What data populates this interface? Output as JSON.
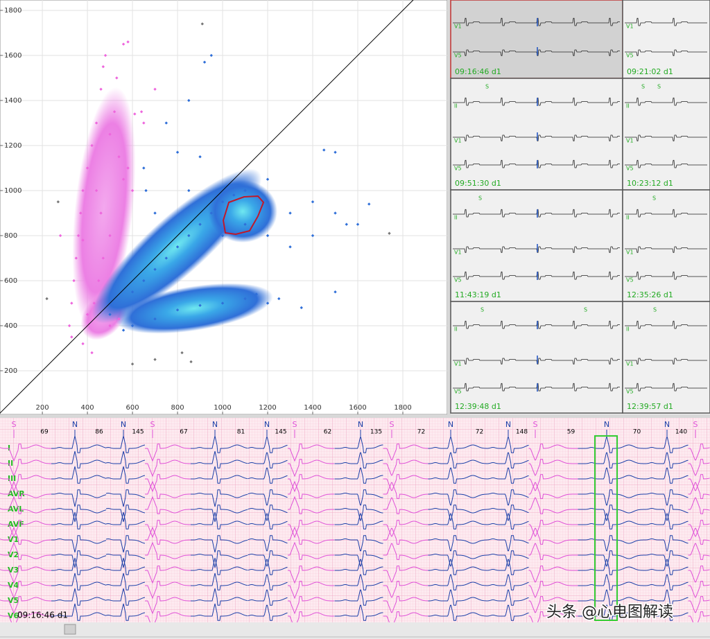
{
  "chart_data": {
    "type": "scatter",
    "xlim": [
      12,
      1997
    ],
    "ylim": [
      6,
      1846
    ],
    "xticks": [
      200,
      400,
      600,
      800,
      1000,
      1200,
      1400,
      1600,
      1800
    ],
    "yticks": [
      200,
      400,
      600,
      800,
      1000,
      1200,
      1400,
      1600,
      1800
    ],
    "grid": true,
    "series": [
      {
        "color": "#ee66dd",
        "x": [
          480,
          470,
          460,
          440,
          420,
          400,
          380,
          370,
          360,
          350,
          340,
          330,
          320,
          330,
          380,
          420,
          500,
          540,
          560,
          580,
          530,
          520,
          500,
          540,
          560,
          580,
          600,
          440,
          460,
          500,
          470,
          450,
          430,
          400,
          380,
          280,
          640,
          650,
          610,
          700
        ],
        "y": [
          1600,
          1550,
          1450,
          1300,
          1200,
          1100,
          1000,
          900,
          800,
          700,
          600,
          500,
          400,
          350,
          320,
          280,
          400,
          430,
          1650,
          1660,
          1500,
          1350,
          1250,
          1150,
          1050,
          1100,
          1000,
          1000,
          900,
          800,
          700,
          600,
          500,
          450,
          780,
          800,
          1350,
          1300,
          1340,
          1450
        ]
      },
      {
        "color": "#2f6fd8",
        "x": [
          560,
          600,
          700,
          800,
          900,
          1000,
          1100,
          1150,
          1200,
          1250,
          650,
          700,
          750,
          800,
          850,
          900,
          950,
          1000,
          1050,
          1100,
          1200,
          1300,
          1400,
          1500,
          1600,
          1650,
          1550,
          1400,
          1300,
          1200,
          1100,
          1000,
          1500,
          1350,
          750,
          850,
          920,
          950,
          1450,
          1500,
          1200,
          900,
          800,
          850,
          700,
          660,
          650,
          600,
          500
        ],
        "y": [
          380,
          400,
          430,
          470,
          490,
          500,
          520,
          540,
          500,
          520,
          600,
          650,
          700,
          750,
          800,
          850,
          900,
          950,
          980,
          1000,
          950,
          900,
          950,
          900,
          850,
          940,
          850,
          800,
          750,
          800,
          850,
          800,
          550,
          480,
          1300,
          1400,
          1570,
          1600,
          1180,
          1170,
          1050,
          1150,
          1170,
          1000,
          900,
          1000,
          1100,
          550,
          450
        ]
      },
      {
        "color": "#777777",
        "x": [
          910,
          1740,
          270,
          220,
          860,
          700,
          600,
          820
        ],
        "y": [
          1740,
          810,
          950,
          520,
          240,
          250,
          230,
          280
        ]
      }
    ]
  },
  "panels": [
    {
      "leads": [
        "V1",
        "V5"
      ],
      "time": "09:16:46 d1"
    },
    {
      "leads": [
        "V1",
        "V5"
      ],
      "time": "09:21:02 d1"
    },
    {
      "leads": [
        "II",
        "V1",
        "V5"
      ],
      "time": "09:51:30 d1",
      "s_marks": [
        "S"
      ]
    },
    {
      "leads": [
        "II",
        "V1",
        "V5"
      ],
      "time": "10:23:12 d1",
      "s_marks": [
        "S",
        "S"
      ]
    },
    {
      "leads": [
        "II",
        "V1",
        "V5"
      ],
      "time": "11:43:19 d1",
      "s_marks": [
        "S"
      ]
    },
    {
      "leads": [
        "II",
        "V1",
        "V5"
      ],
      "time": "12:35:26 d1",
      "s_marks": [
        "S"
      ]
    },
    {
      "leads": [
        "II",
        "V1",
        "V5"
      ],
      "time": "12:39:48 d1",
      "s_marks": [
        "S",
        "S"
      ]
    },
    {
      "leads": [
        "II",
        "V1",
        "V5"
      ],
      "time": "12:39:57 d1",
      "s_marks": [
        "S"
      ]
    }
  ],
  "ecg": {
    "beats": [
      "S",
      "N",
      "N",
      "S",
      "N",
      "N",
      "S",
      "N",
      "S",
      "N",
      "N",
      "S",
      "N",
      "N",
      "S"
    ],
    "rr": [
      69,
      86,
      145,
      67,
      81,
      145,
      62,
      135,
      72,
      72,
      148,
      59,
      70,
      140
    ],
    "leads": [
      "I",
      "II",
      "III",
      "AVR",
      "AVL",
      "AVF",
      "V1",
      "V2",
      "V3",
      "V4",
      "V5",
      "V6"
    ],
    "time": "09:16:46 d1"
  },
  "watermark": "头条 @心电图解读"
}
